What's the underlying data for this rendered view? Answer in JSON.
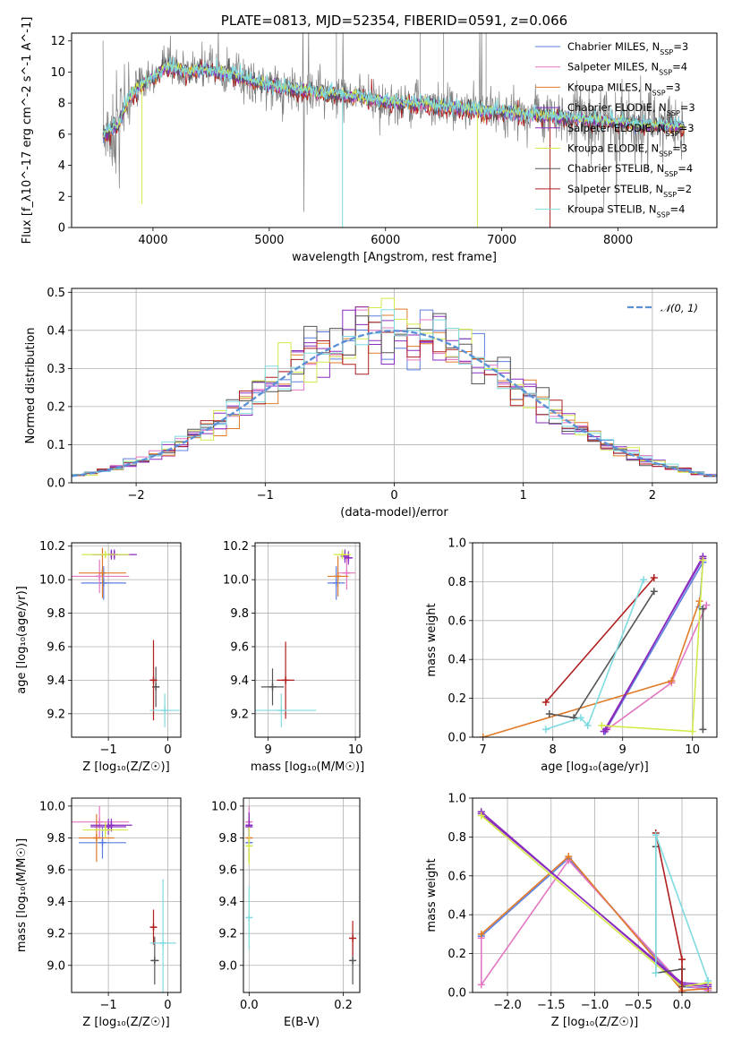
{
  "colors": {
    "chabrier_miles": "#5b7fe0",
    "salpeter_miles": "#e377c2",
    "kroupa_miles": "#e07b2a",
    "chabrier_elodie": "#8a2dbf",
    "salpeter_elodie": "#8a2dbf",
    "kroupa_elodie": "#d4e94a",
    "chabrier_stelib": "#555555",
    "salpeter_stelib": "#b01e1e",
    "kroupa_stelib": "#7fdbe0",
    "data": "#7f7f7f",
    "gauss": "#5b8fd6"
  },
  "chart_data": [
    {
      "id": "spectrum",
      "type": "line",
      "title": "PLATE=0813, MJD=52354, FIBERID=0591, z=0.066",
      "xlabel": "wavelength [Angstrom, rest frame]",
      "ylabel": "Flux [f_λ10^-17 erg cm^-2 s^-1 A^-1]",
      "xlim": [
        3300,
        8850
      ],
      "ylim": [
        0,
        12.5
      ],
      "xticks": [
        "4000",
        "5000",
        "6000",
        "7000",
        "8000"
      ],
      "yticks": [
        "0",
        "2",
        "4",
        "6",
        "8",
        "10",
        "12"
      ],
      "grid": false,
      "legend_position": "right",
      "legend": [
        {
          "label": "Chabrier MILES, N",
          "sub": "SSP",
          "tail": "=3",
          "color": "chabrier_miles"
        },
        {
          "label": "Salpeter MILES, N",
          "sub": "SSP",
          "tail": "=4",
          "color": "salpeter_miles"
        },
        {
          "label": "Kroupa MILES, N",
          "sub": "SSP",
          "tail": "=3",
          "color": "kroupa_miles"
        },
        {
          "label": "Chabrier ELODIE, N",
          "sub": "SSP",
          "tail": "=3",
          "color": "chabrier_elodie"
        },
        {
          "label": "Salpeter ELODIE, N",
          "sub": "SSP",
          "tail": "=3",
          "color": "salpeter_elodie"
        },
        {
          "label": "Kroupa ELODIE, N",
          "sub": "SSP",
          "tail": "=3",
          "color": "kroupa_elodie"
        },
        {
          "label": "Chabrier STELIB, N",
          "sub": "SSP",
          "tail": "=4",
          "color": "chabrier_stelib"
        },
        {
          "label": "Salpeter STELIB, N",
          "sub": "SSP",
          "tail": "=2",
          "color": "salpeter_stelib"
        },
        {
          "label": "Kroupa STELIB, N",
          "sub": "SSP",
          "tail": "=4",
          "color": "kroupa_stelib"
        }
      ],
      "continuum": [
        [
          3570,
          5.8
        ],
        [
          3700,
          6.6
        ],
        [
          3800,
          8.4
        ],
        [
          3900,
          9.2
        ],
        [
          4000,
          9.6
        ],
        [
          4100,
          10.3
        ],
        [
          4200,
          10.2
        ],
        [
          4300,
          10.0
        ],
        [
          4400,
          10.2
        ],
        [
          4500,
          10.1
        ],
        [
          4700,
          9.8
        ],
        [
          4900,
          9.3
        ],
        [
          5100,
          9.0
        ],
        [
          5300,
          8.8
        ],
        [
          5500,
          8.6
        ],
        [
          5800,
          8.3
        ],
        [
          6100,
          8.0
        ],
        [
          6400,
          7.9
        ],
        [
          6700,
          7.6
        ],
        [
          7000,
          7.4
        ],
        [
          7300,
          7.2
        ],
        [
          7600,
          7.0
        ],
        [
          7900,
          6.8
        ],
        [
          8200,
          6.6
        ],
        [
          8500,
          6.5
        ],
        [
          8570,
          6.4
        ]
      ]
    },
    {
      "id": "residuals",
      "type": "step",
      "xlabel": "(data-model)/error",
      "ylabel": "Normed distribution",
      "xlim": [
        -2.5,
        2.5
      ],
      "ylim": [
        0,
        0.51
      ],
      "xticks": [
        "−2",
        "−1",
        "0",
        "1",
        "2"
      ],
      "yticks": [
        "0.0",
        "0.1",
        "0.2",
        "0.3",
        "0.4",
        "0.5"
      ],
      "grid": true,
      "legend": [
        {
          "label": "𝒩(0, 1)",
          "color": "gauss"
        }
      ],
      "legend_position": "top-right",
      "bin_width": 0.1
    },
    {
      "id": "age_vs_z",
      "type": "scatter",
      "xlabel": "Z [log₁₀(Z/Z☉)]",
      "ylabel": "age  [log₁₀(age/yr)]",
      "xlim": [
        -1.62,
        0.22
      ],
      "ylim": [
        9.06,
        10.22
      ],
      "xticks": [
        "−1",
        "0"
      ],
      "yticks": [
        "9.2",
        "9.4",
        "9.6",
        "9.8",
        "10.0",
        "10.2"
      ],
      "grid": true,
      "points": [
        {
          "x": -1.08,
          "y": 9.98,
          "xerr": 0.38,
          "yerr": 0.1,
          "color": "chabrier_miles"
        },
        {
          "x": -1.15,
          "y": 10.02,
          "xerr": 0.5,
          "yerr": 0.1,
          "color": "salpeter_miles"
        },
        {
          "x": -1.1,
          "y": 10.04,
          "xerr": 0.4,
          "yerr": 0.15,
          "color": "kroupa_miles"
        },
        {
          "x": -0.9,
          "y": 10.15,
          "xerr": 0.38,
          "yerr": 0.03,
          "color": "chabrier_elodie"
        },
        {
          "x": -0.95,
          "y": 10.15,
          "xerr": 0.3,
          "yerr": 0.03,
          "color": "salpeter_elodie"
        },
        {
          "x": -1.05,
          "y": 10.15,
          "xerr": 0.4,
          "yerr": 0.02,
          "color": "kroupa_elodie"
        },
        {
          "x": -0.2,
          "y": 9.36,
          "xerr": 0.06,
          "yerr": 0.12,
          "color": "chabrier_stelib"
        },
        {
          "x": -0.24,
          "y": 9.4,
          "xerr": 0.05,
          "yerr": 0.24,
          "color": "salpeter_stelib"
        },
        {
          "x": -0.05,
          "y": 9.22,
          "xerr": 0.25,
          "yerr": 0.1,
          "color": "kroupa_stelib"
        }
      ]
    },
    {
      "id": "age_vs_mass",
      "type": "scatter",
      "xlabel": "mass [log₁₀(M/M☉)]",
      "ylabel": "",
      "xlim": [
        8.85,
        10.05
      ],
      "ylim": [
        9.06,
        10.22
      ],
      "xticks": [
        "9",
        "10"
      ],
      "yticks": [
        "9.2",
        "9.4",
        "9.6",
        "9.8",
        "10.0",
        "10.2"
      ],
      "grid": true,
      "points": [
        {
          "x": 9.78,
          "y": 9.98,
          "xerr": 0.1,
          "yerr": 0.1,
          "color": "chabrier_miles"
        },
        {
          "x": 9.9,
          "y": 10.04,
          "xerr": 0.1,
          "yerr": 0.1,
          "color": "salpeter_miles"
        },
        {
          "x": 9.8,
          "y": 10.02,
          "xerr": 0.12,
          "yerr": 0.12,
          "color": "kroupa_miles"
        },
        {
          "x": 9.88,
          "y": 10.14,
          "xerr": 0.05,
          "yerr": 0.04,
          "color": "chabrier_elodie"
        },
        {
          "x": 9.92,
          "y": 10.13,
          "xerr": 0.05,
          "yerr": 0.04,
          "color": "salpeter_elodie"
        },
        {
          "x": 9.85,
          "y": 10.15,
          "xerr": 0.1,
          "yerr": 0.03,
          "color": "kroupa_elodie"
        },
        {
          "x": 9.05,
          "y": 9.36,
          "xerr": 0.13,
          "yerr": 0.11,
          "color": "chabrier_stelib"
        },
        {
          "x": 9.2,
          "y": 9.4,
          "xerr": 0.1,
          "yerr": 0.23,
          "color": "salpeter_stelib"
        },
        {
          "x": 9.15,
          "y": 9.22,
          "xerr": 0.4,
          "yerr": 0.1,
          "color": "kroupa_stelib"
        }
      ]
    },
    {
      "id": "mass_weight_vs_age",
      "type": "line",
      "xlabel": "age  [log₁₀(age/yr)]",
      "ylabel": "mass weight",
      "xlim": [
        6.85,
        10.35
      ],
      "ylim": [
        0,
        1.0
      ],
      "xticks": [
        "7",
        "8",
        "9",
        "10"
      ],
      "yticks": [
        "0.0",
        "0.2",
        "0.4",
        "0.6",
        "0.8",
        "1.0"
      ],
      "grid": true,
      "series": [
        {
          "color": "chabrier_miles",
          "points": [
            [
              8.75,
              0.03
            ],
            [
              10.15,
              0.9
            ],
            [
              10.1,
              0.67
            ]
          ]
        },
        {
          "color": "salpeter_miles",
          "points": [
            [
              8.78,
              0.04
            ],
            [
              9.7,
              0.28
            ],
            [
              10.2,
              0.68
            ]
          ]
        },
        {
          "color": "kroupa_miles",
          "points": [
            [
              7.0,
              0.0
            ],
            [
              9.7,
              0.29
            ],
            [
              10.1,
              0.7
            ]
          ]
        },
        {
          "color": "chabrier_elodie",
          "points": [
            [
              8.73,
              0.03
            ],
            [
              10.15,
              0.92
            ]
          ]
        },
        {
          "color": "salpeter_elodie",
          "points": [
            [
              8.76,
              0.04
            ],
            [
              10.15,
              0.93
            ]
          ]
        },
        {
          "color": "kroupa_elodie",
          "points": [
            [
              8.7,
              0.06
            ],
            [
              10.0,
              0.03
            ],
            [
              10.15,
              0.91
            ]
          ]
        },
        {
          "color": "chabrier_stelib",
          "points": [
            [
              7.95,
              0.12
            ],
            [
              8.3,
              0.1
            ],
            [
              9.45,
              0.75
            ]
          ]
        },
        {
          "color": "salpeter_stelib",
          "points": [
            [
              7.9,
              0.18
            ],
            [
              9.45,
              0.82
            ]
          ]
        },
        {
          "color": "kroupa_stelib",
          "points": [
            [
              7.9,
              0.04
            ],
            [
              8.4,
              0.1
            ],
            [
              8.5,
              0.06
            ],
            [
              9.3,
              0.81
            ]
          ]
        },
        {
          "color": "chabrier_stelib",
          "points": [
            [
              10.15,
              0.04
            ],
            [
              10.15,
              0.66
            ]
          ]
        }
      ]
    },
    {
      "id": "mass_vs_z",
      "type": "scatter",
      "xlabel": "Z [log₁₀(Z/Z☉)]",
      "ylabel": "mass [log₁₀(M/M☉)]",
      "xlim": [
        -1.62,
        0.22
      ],
      "ylim": [
        8.83,
        10.05
      ],
      "xticks": [
        "−1",
        "0"
      ],
      "yticks": [
        "9.0",
        "9.2",
        "9.4",
        "9.6",
        "9.8",
        "10.0"
      ],
      "grid": true,
      "points": [
        {
          "x": -1.1,
          "y": 9.77,
          "xerr": 0.4,
          "yerr": 0.1,
          "color": "chabrier_miles"
        },
        {
          "x": -1.15,
          "y": 9.9,
          "xerr": 0.5,
          "yerr": 0.1,
          "color": "salpeter_miles"
        },
        {
          "x": -1.2,
          "y": 9.8,
          "xerr": 0.3,
          "yerr": 0.15,
          "color": "kroupa_miles"
        },
        {
          "x": -0.95,
          "y": 9.88,
          "xerr": 0.35,
          "yerr": 0.04,
          "color": "chabrier_elodie"
        },
        {
          "x": -1.0,
          "y": 9.87,
          "xerr": 0.3,
          "yerr": 0.05,
          "color": "salpeter_elodie"
        },
        {
          "x": -1.05,
          "y": 9.85,
          "xerr": 0.38,
          "yerr": 0.05,
          "color": "kroupa_elodie"
        },
        {
          "x": -0.22,
          "y": 9.03,
          "xerr": 0.07,
          "yerr": 0.15,
          "color": "chabrier_stelib"
        },
        {
          "x": -0.24,
          "y": 9.24,
          "xerr": 0.05,
          "yerr": 0.11,
          "color": "salpeter_stelib"
        },
        {
          "x": -0.08,
          "y": 9.14,
          "xerr": 0.22,
          "yerr": 0.4,
          "color": "kroupa_stelib"
        }
      ]
    },
    {
      "id": "mass_vs_ebv",
      "type": "scatter",
      "xlabel": "E(B-V)",
      "ylabel": "",
      "xlim": [
        -0.012,
        0.235
      ],
      "ylim": [
        8.83,
        10.05
      ],
      "xticks": [
        "0.0",
        "0.2"
      ],
      "yticks": [
        "9.0",
        "9.2",
        "9.4",
        "9.6",
        "9.8",
        "10.0"
      ],
      "grid": true,
      "points": [
        {
          "x": 0.0,
          "y": 9.77,
          "xerr": 0.0,
          "yerr": 0.1,
          "color": "chabrier_miles"
        },
        {
          "x": 0.0,
          "y": 9.9,
          "xerr": 0.0,
          "yerr": 0.1,
          "color": "salpeter_miles"
        },
        {
          "x": 0.0,
          "y": 9.8,
          "xerr": 0.0,
          "yerr": 0.15,
          "color": "kroupa_miles"
        },
        {
          "x": 0.0,
          "y": 9.88,
          "xerr": 0.0,
          "yerr": 0.08,
          "color": "chabrier_elodie"
        },
        {
          "x": 0.0,
          "y": 9.87,
          "xerr": 0.0,
          "yerr": 0.06,
          "color": "salpeter_elodie"
        },
        {
          "x": 0.0,
          "y": 9.75,
          "xerr": 0.0,
          "yerr": 0.12,
          "color": "kroupa_elodie"
        },
        {
          "x": 0.22,
          "y": 9.03,
          "xerr": 0.0,
          "yerr": 0.15,
          "color": "chabrier_stelib"
        },
        {
          "x": 0.22,
          "y": 9.17,
          "xerr": 0.0,
          "yerr": 0.11,
          "color": "salpeter_stelib"
        },
        {
          "x": 0.0,
          "y": 9.3,
          "xerr": 0.0,
          "yerr": 0.2,
          "color": "kroupa_stelib"
        }
      ]
    },
    {
      "id": "mass_weight_vs_z",
      "type": "line",
      "xlabel": "Z [log₁₀(Z/Z☉)]",
      "ylabel": "mass weight",
      "xlim": [
        -2.4,
        0.4
      ],
      "ylim": [
        0,
        1.0
      ],
      "xticks": [
        "−2.0",
        "−1.5",
        "−1.0",
        "−0.5",
        "0.0"
      ],
      "yticks": [
        "0.0",
        "0.2",
        "0.4",
        "0.6",
        "0.8",
        "1.0"
      ],
      "grid": true,
      "series": [
        {
          "color": "chabrier_miles",
          "points": [
            [
              -2.3,
              0.29
            ],
            [
              -1.3,
              0.69
            ],
            [
              0.0,
              0.03
            ],
            [
              0.3,
              0.02
            ]
          ]
        },
        {
          "color": "salpeter_miles",
          "points": [
            [
              -2.3,
              0.28
            ],
            [
              -2.3,
              0.04
            ],
            [
              -1.3,
              0.68
            ],
            [
              0.0,
              0.04
            ],
            [
              0.3,
              0.01
            ]
          ]
        },
        {
          "color": "kroupa_miles",
          "points": [
            [
              -2.3,
              0.3
            ],
            [
              -1.3,
              0.7
            ],
            [
              0.0,
              0.01
            ],
            [
              0.3,
              0.02
            ]
          ]
        },
        {
          "color": "chabrier_elodie",
          "points": [
            [
              -2.3,
              0.93
            ],
            [
              0.0,
              0.04
            ],
            [
              0.3,
              0.03
            ]
          ]
        },
        {
          "color": "salpeter_elodie",
          "points": [
            [
              -2.3,
              0.92
            ],
            [
              0.0,
              0.05
            ],
            [
              0.3,
              0.04
            ]
          ]
        },
        {
          "color": "kroupa_elodie",
          "points": [
            [
              -2.3,
              0.91
            ],
            [
              0.0,
              0.03
            ],
            [
              0.3,
              0.05
            ]
          ]
        },
        {
          "color": "chabrier_stelib",
          "points": [
            [
              -0.3,
              0.75
            ],
            [
              -0.3,
              0.1
            ],
            [
              0.0,
              0.12
            ],
            [
              0.0,
              0.03
            ]
          ]
        },
        {
          "color": "salpeter_stelib",
          "points": [
            [
              -0.3,
              0.82
            ],
            [
              0.0,
              0.17
            ],
            [
              0.0,
              0.0
            ]
          ]
        },
        {
          "color": "kroupa_stelib",
          "points": [
            [
              -0.3,
              0.1
            ],
            [
              -0.3,
              0.81
            ],
            [
              0.3,
              0.06
            ]
          ]
        }
      ]
    }
  ]
}
